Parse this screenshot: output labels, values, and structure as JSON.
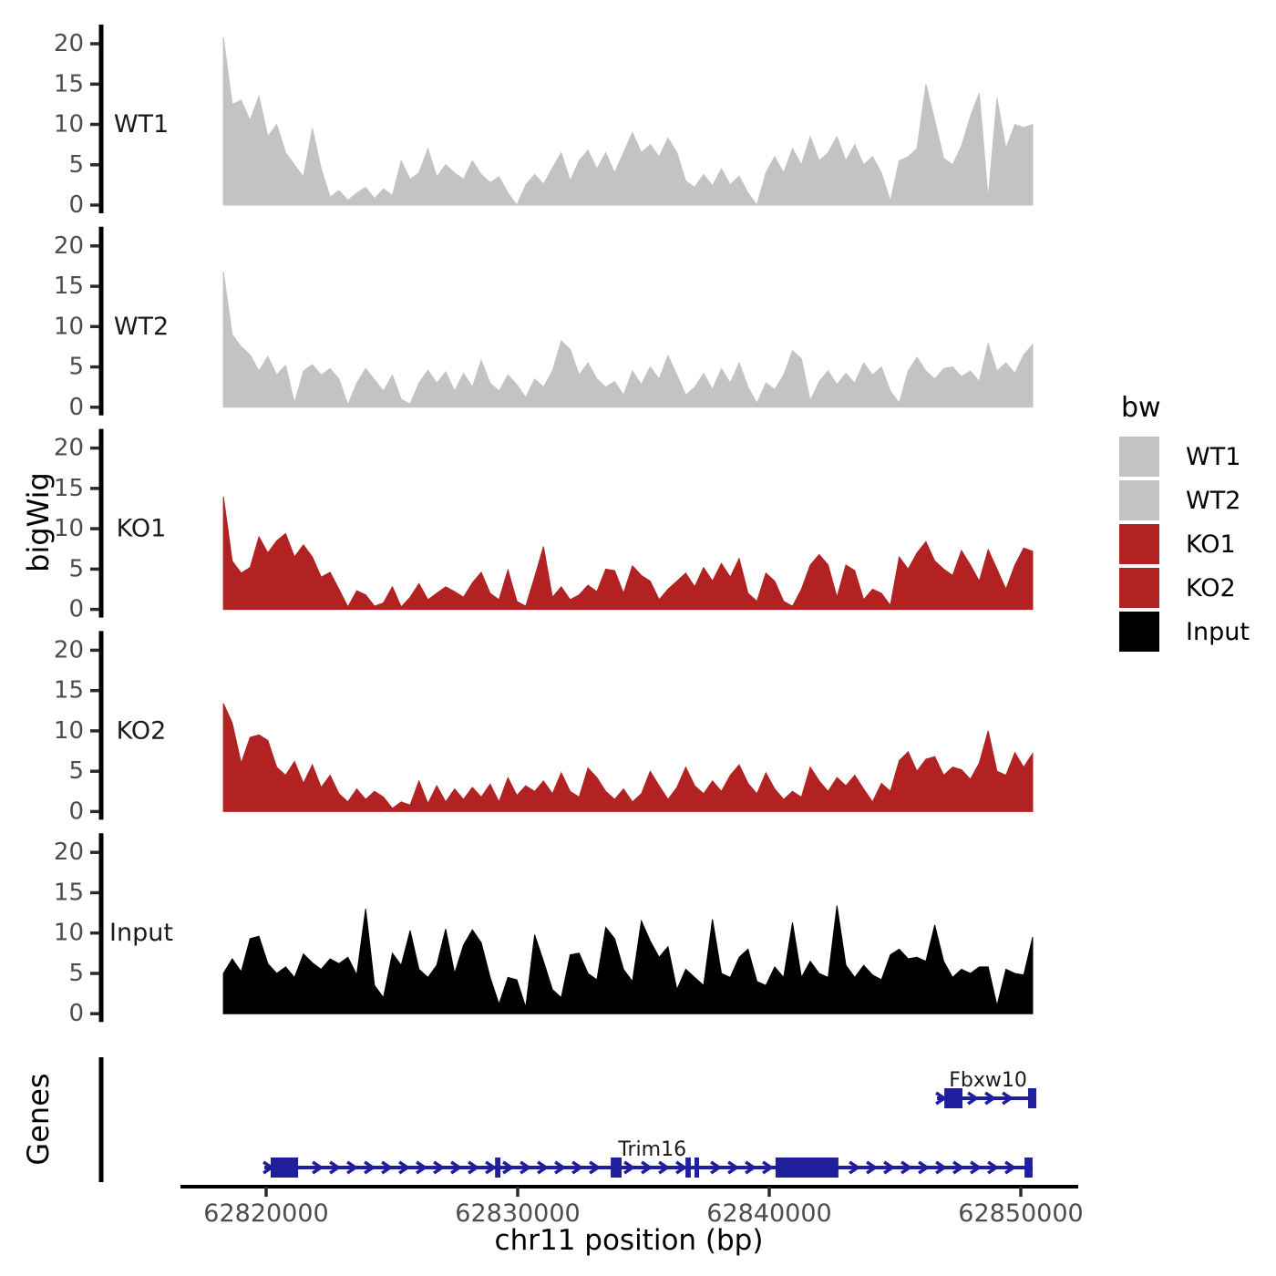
{
  "figure": {
    "ylab_left": "bigWig",
    "genes_label": "Genes",
    "xlab": "chr11 position (bp)"
  },
  "axes": {
    "x_ticks": [
      62820000,
      62830000,
      62840000,
      62850000
    ],
    "x_tick_labels": [
      "62820000",
      "62830000",
      "62840000",
      "62850000"
    ],
    "y_ticks": [
      0,
      5,
      10,
      15,
      20
    ],
    "y_tick_labels": [
      "0",
      "5",
      "10",
      "15",
      "20"
    ],
    "y_max": 22
  },
  "legend": {
    "title": "bw",
    "entries": [
      {
        "label": "WT1",
        "color": "#C3C3C3"
      },
      {
        "label": "WT2",
        "color": "#C3C3C3"
      },
      {
        "label": "KO1",
        "color": "#B22222"
      },
      {
        "label": "KO2",
        "color": "#B22222"
      },
      {
        "label": "Input",
        "color": "#000000"
      }
    ]
  },
  "chart_data": {
    "type": "area",
    "title": "",
    "x_unit": "bp",
    "chromosome": "chr11",
    "x_start": 62818300,
    "x_end": 62850470,
    "ylim": [
      0,
      22
    ],
    "y_ticks": [
      0,
      5,
      10,
      15,
      20
    ],
    "gene_color": "#1F1F9C",
    "series": [
      {
        "name": "WT1",
        "color": "#C3C3C3",
        "values": [
          20.8,
          12.5,
          13,
          10.5,
          13.5,
          8.5,
          10,
          6.5,
          5,
          3.5,
          9.5,
          4.5,
          1,
          1.8,
          0.6,
          1.5,
          2.2,
          0.8,
          2,
          1.2,
          5.5,
          3.2,
          4,
          7,
          3.5,
          5,
          4,
          3.2,
          5.5,
          3.8,
          2.8,
          3.5,
          1.5,
          0,
          2.5,
          3.8,
          2.6,
          4.6,
          6.5,
          3,
          5.5,
          6.8,
          4.5,
          6.5,
          4,
          6.5,
          9,
          6.5,
          7.5,
          6,
          8.3,
          6.5,
          3,
          2.2,
          3.8,
          2.4,
          4.5,
          2.5,
          3.6,
          1.5,
          0,
          4,
          6,
          4,
          7,
          5,
          8.5,
          5.5,
          6.5,
          8.5,
          5.5,
          7.5,
          5,
          6,
          4,
          0.5,
          5.5,
          6,
          7,
          15,
          10.5,
          5.8,
          5,
          7.3,
          11,
          13.9,
          0.8,
          13.3,
          7,
          10,
          9.6,
          10
        ]
      },
      {
        "name": "WT2",
        "color": "#C3C3C3",
        "values": [
          16.8,
          9,
          7.5,
          6.5,
          4.5,
          6.3,
          4,
          5.2,
          0.5,
          4.5,
          5.3,
          4,
          4.8,
          3.5,
          0.3,
          3,
          4.8,
          3.4,
          2,
          4,
          1,
          0.4,
          3,
          4.6,
          3,
          4.4,
          2,
          4.2,
          2.5,
          5.8,
          3,
          2,
          4,
          2.8,
          1.2,
          3.5,
          2.5,
          4.5,
          8.2,
          7.2,
          4,
          5.5,
          3.5,
          2.5,
          3.2,
          1.5,
          4.5,
          2.8,
          5,
          3.5,
          6.4,
          4,
          1.5,
          2.5,
          4.2,
          2.2,
          4.8,
          3,
          5.5,
          2.5,
          0.5,
          3,
          2.2,
          4,
          7,
          6,
          0.8,
          3.2,
          4.5,
          2.8,
          4.2,
          3,
          5.5,
          4,
          5,
          2,
          0.5,
          4.5,
          6.2,
          4.5,
          3.5,
          4.8,
          5,
          3.8,
          4.5,
          3.2,
          7.9,
          4.5,
          5.5,
          4.2,
          6.5,
          7.8
        ]
      },
      {
        "name": "KO1",
        "color": "#B22222",
        "values": [
          14,
          6,
          4.5,
          5.2,
          9,
          7,
          8.5,
          9.4,
          6.5,
          8,
          6.5,
          4,
          4.6,
          2.5,
          0.3,
          2.3,
          1.8,
          0.4,
          0.8,
          2.8,
          0.3,
          1.5,
          3.2,
          1.2,
          2,
          2.8,
          2.2,
          1.5,
          3.3,
          4.6,
          2,
          1.2,
          4.9,
          1,
          0.4,
          4,
          7.8,
          1.5,
          2.8,
          1.2,
          1.8,
          3,
          2.2,
          5,
          4.8,
          2,
          5.4,
          4.2,
          3.5,
          1.2,
          2.5,
          3.5,
          4.5,
          2.8,
          5.2,
          3.5,
          5.7,
          4,
          6.3,
          2,
          1,
          4.5,
          3.5,
          1,
          0.4,
          2.5,
          5.5,
          6.8,
          5.5,
          1.5,
          5.5,
          4.8,
          1.2,
          2.5,
          2,
          0.5,
          6.5,
          5,
          7,
          8.4,
          6,
          5,
          4.2,
          7.3,
          5.5,
          3.5,
          7.4,
          5,
          2.5,
          5.5,
          7.6,
          7.2
        ]
      },
      {
        "name": "KO2",
        "color": "#B22222",
        "values": [
          13.4,
          11,
          6,
          9.2,
          9.5,
          8.8,
          5.5,
          4.5,
          6.2,
          3.5,
          5.8,
          3,
          4.5,
          2.2,
          1.2,
          2.8,
          1.5,
          2.5,
          1.8,
          0.4,
          1.2,
          0.8,
          3.8,
          1,
          3.2,
          1.2,
          2.8,
          1.5,
          3,
          1.8,
          3.4,
          1.2,
          4.2,
          2,
          3.2,
          2.5,
          3.8,
          2.2,
          4.8,
          2.5,
          1.8,
          5.4,
          4.2,
          2.5,
          1.5,
          2.8,
          1.2,
          2.2,
          5,
          3.2,
          1.5,
          3,
          5.5,
          3.2,
          2.2,
          3.8,
          2.5,
          4.5,
          5.8,
          3.5,
          2.2,
          4.8,
          2.8,
          1.5,
          2.5,
          1.8,
          5.5,
          3.8,
          2.5,
          4.2,
          3.2,
          4.5,
          2.8,
          1.2,
          3.5,
          2.5,
          6.3,
          7.4,
          5,
          6.5,
          6.8,
          4.5,
          5.5,
          5.2,
          4,
          6,
          10,
          5,
          4.5,
          7.3,
          5.5,
          7.2
        ]
      },
      {
        "name": "Input",
        "color": "#000000",
        "values": [
          5,
          6.8,
          5.2,
          9.3,
          9.6,
          6.2,
          5,
          5.8,
          4.5,
          7.4,
          6.3,
          5.5,
          6.8,
          6.2,
          7,
          4.8,
          13,
          3.5,
          2,
          7.5,
          6,
          10.3,
          5.5,
          4.5,
          6,
          10.5,
          5,
          8.5,
          10.4,
          8.8,
          4.5,
          1.2,
          4.5,
          4.2,
          0.8,
          9.8,
          6.5,
          3,
          2,
          7.3,
          7.5,
          5,
          4.2,
          10.7,
          9.3,
          5.5,
          4,
          11.5,
          9,
          7,
          8.3,
          3,
          5.5,
          4.5,
          3.5,
          11.7,
          5,
          4.5,
          7,
          8,
          4,
          3.5,
          5.8,
          4.5,
          11.3,
          4.5,
          6.5,
          5,
          4.5,
          13.4,
          6,
          4.5,
          6,
          4.8,
          4.2,
          7.3,
          8,
          6.8,
          7,
          6.5,
          11,
          6.5,
          4.5,
          5.5,
          5,
          5.8,
          5.8,
          1,
          5.5,
          5,
          4.8,
          9.5
        ]
      }
    ],
    "genes": [
      {
        "name": "Fbxw10",
        "strand": "+",
        "row": 0,
        "start": 62846670,
        "end": 62850615,
        "label_pos": 62848700,
        "exons": [
          {
            "start": 62846960,
            "end": 62847680
          },
          {
            "start": 62850290,
            "end": 62850615
          }
        ]
      },
      {
        "name": "Trim16",
        "strand": "+",
        "row": 1,
        "start": 62819930,
        "end": 62850470,
        "label_pos": 62835350,
        "exons": [
          {
            "start": 62820180,
            "end": 62821270
          },
          {
            "start": 62829100,
            "end": 62829310
          },
          {
            "start": 62833700,
            "end": 62834130
          },
          {
            "start": 62836670,
            "end": 62836880
          },
          {
            "start": 62837030,
            "end": 62837210
          },
          {
            "start": 62840250,
            "end": 62842750
          },
          {
            "start": 62850150,
            "end": 62850470
          }
        ]
      }
    ]
  }
}
